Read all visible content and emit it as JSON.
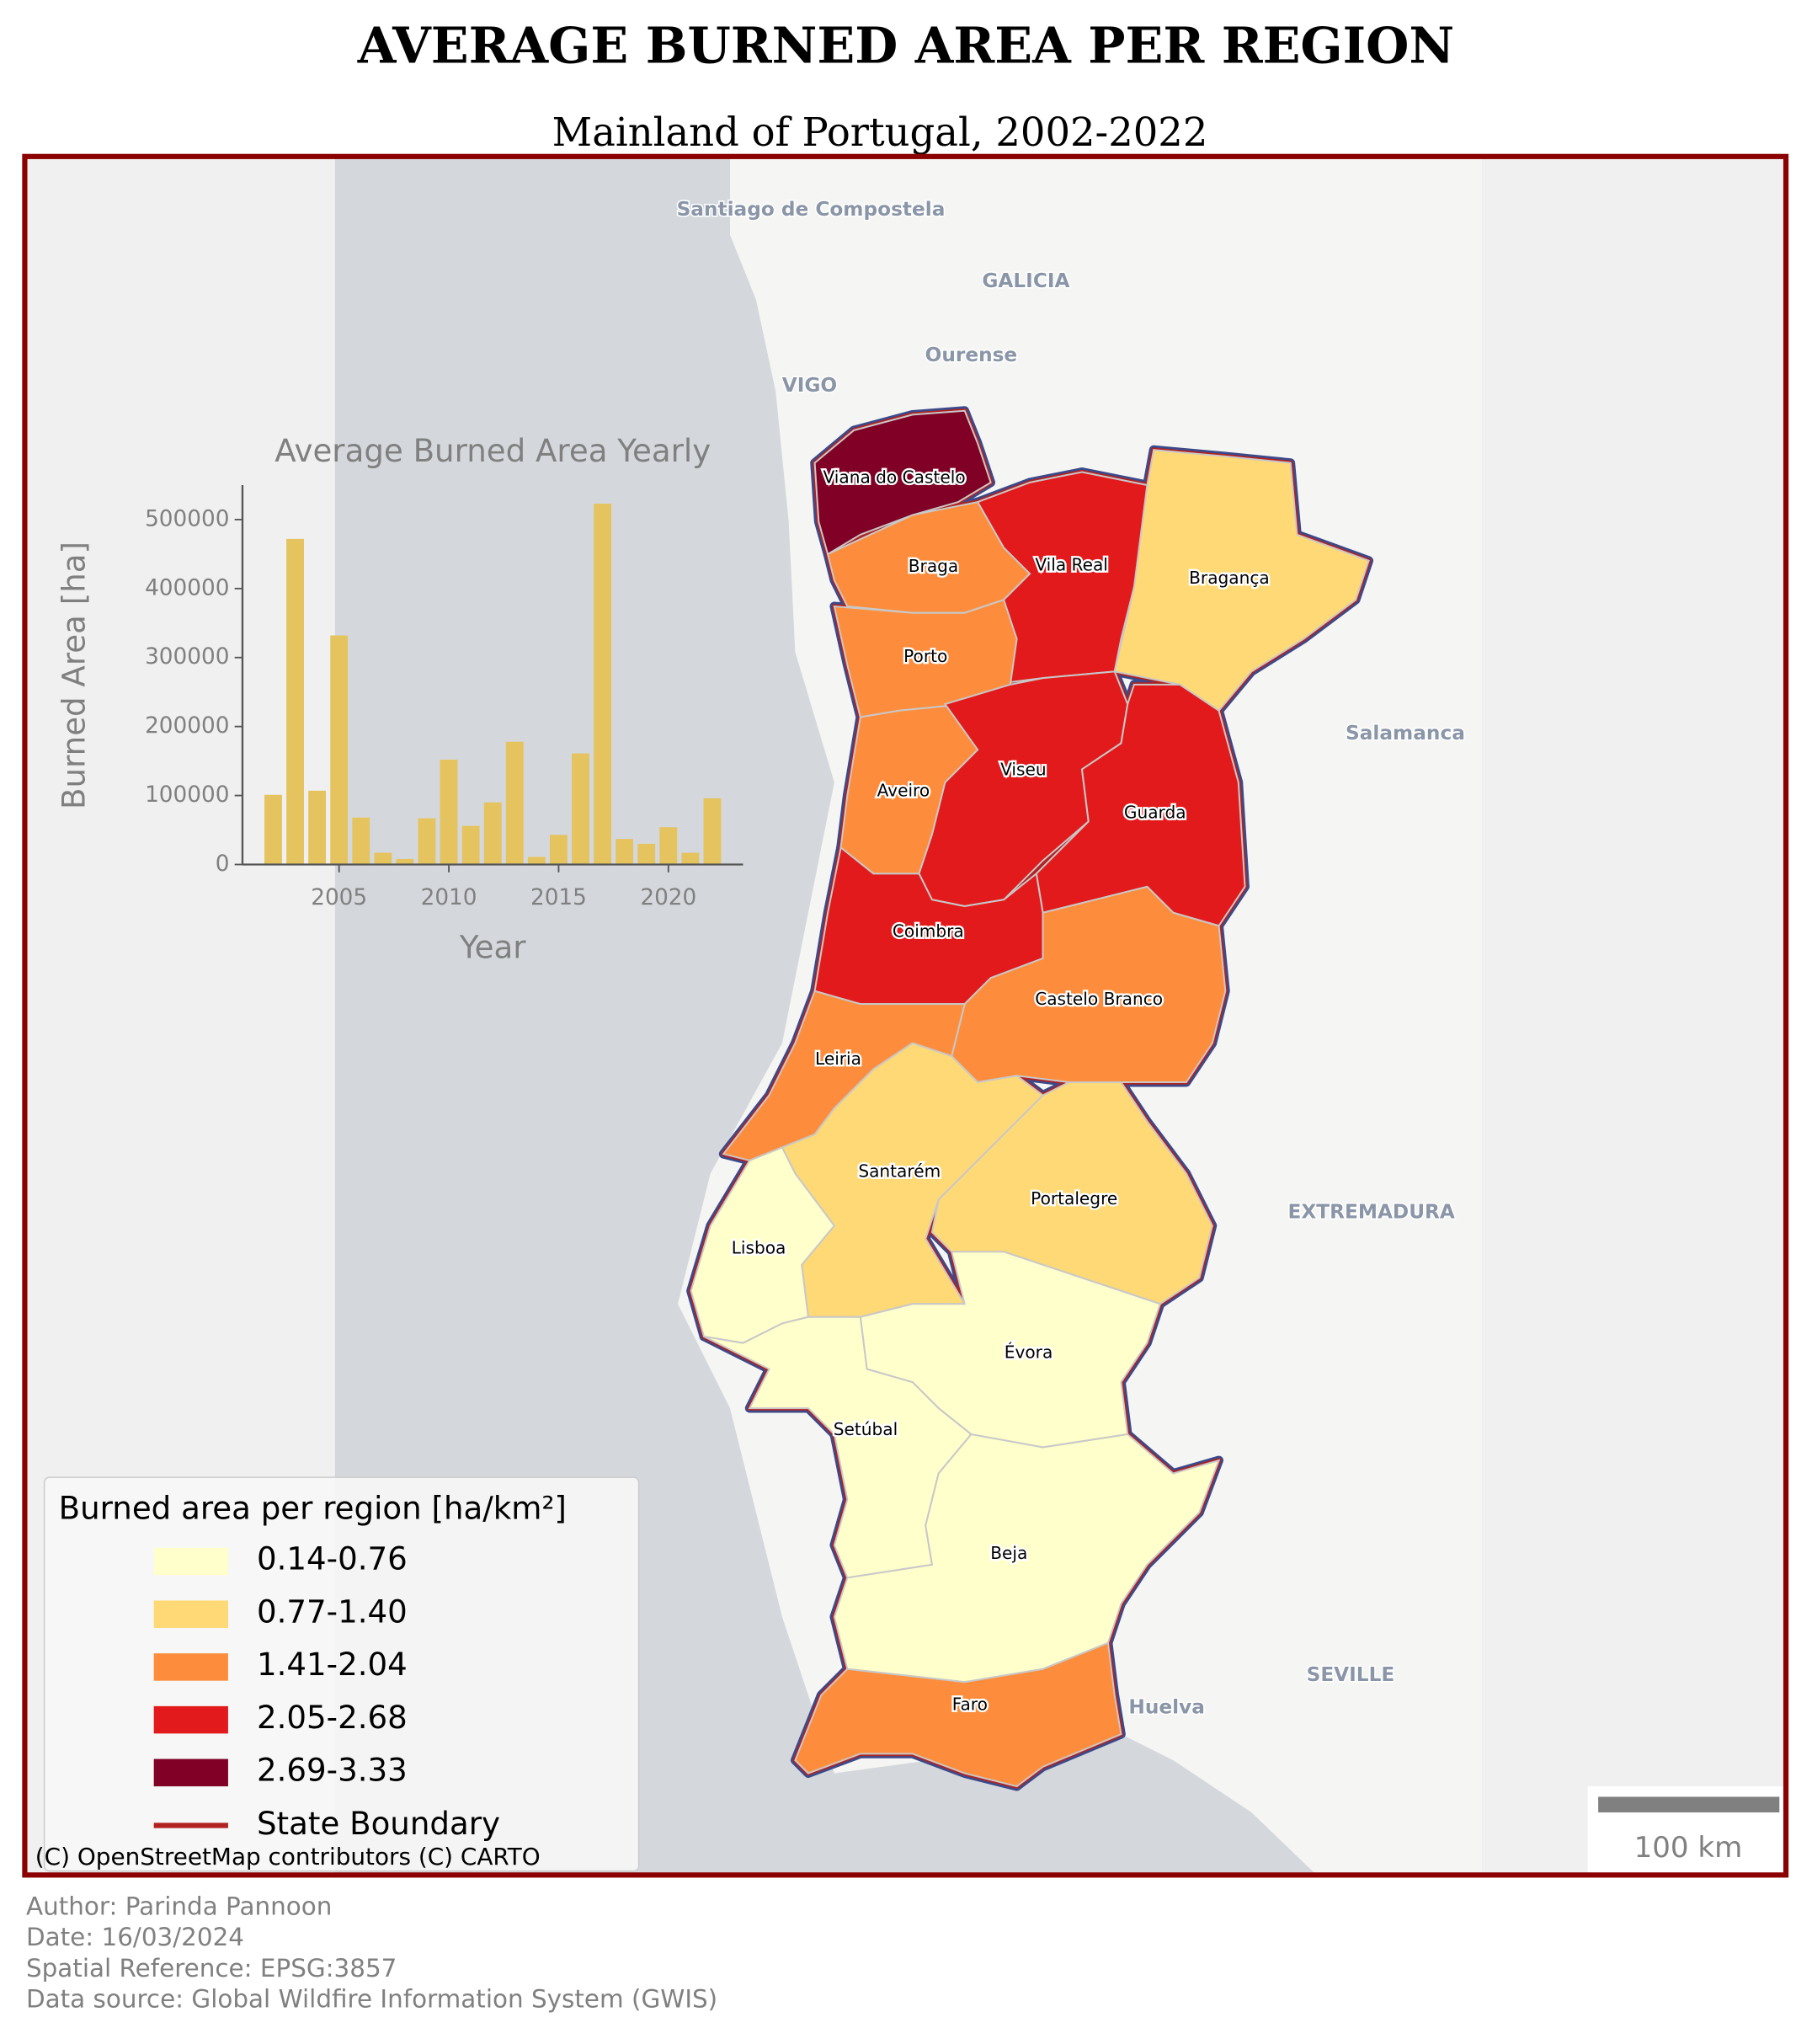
{
  "title": "AVERAGE BURNED AREA PER REGION",
  "subtitle": "Mainland of Portugal, 2002-2022",
  "regions": [
    {
      "name": "Viana do Castelo",
      "color": "#800026"
    },
    {
      "name": "Braga",
      "color": "#fd8d3c"
    },
    {
      "name": "Vila Real",
      "color": "#e31a1c"
    },
    {
      "name": "Bragança",
      "color": "#fed976"
    },
    {
      "name": "Porto",
      "color": "#fd8d3c"
    },
    {
      "name": "Aveiro",
      "color": "#fd8d3c"
    },
    {
      "name": "Viseu",
      "color": "#e31a1c"
    },
    {
      "name": "Guarda",
      "color": "#e31a1c"
    },
    {
      "name": "Coimbra",
      "color": "#e31a1c"
    },
    {
      "name": "Castelo Branco",
      "color": "#fd8d3c"
    },
    {
      "name": "Leiria",
      "color": "#fd8d3c"
    },
    {
      "name": "Santarém",
      "color": "#fed976"
    },
    {
      "name": "Portalegre",
      "color": "#fed976"
    },
    {
      "name": "Lisboa",
      "color": "#ffffcc"
    },
    {
      "name": "Évora",
      "color": "#ffffcc"
    },
    {
      "name": "Setúbal",
      "color": "#ffffcc"
    },
    {
      "name": "Beja",
      "color": "#ffffcc"
    },
    {
      "name": "Faro",
      "color": "#fd8d3c"
    }
  ],
  "basemap_labels": [
    "Santiago de Compostela",
    "GALICIA",
    "Ourense",
    "VIGO",
    "Salamanca",
    "EXTREMADURA",
    "SEVILLE",
    "Huelva"
  ],
  "legend": {
    "title": "Burned area per region [ha/km²]",
    "items": [
      {
        "label": "0.14-0.76",
        "color": "#ffffcc"
      },
      {
        "label": "0.77-1.40",
        "color": "#fed976"
      },
      {
        "label": "1.41-2.04",
        "color": "#fd8d3c"
      },
      {
        "label": "2.05-2.68",
        "color": "#e31a1c"
      },
      {
        "label": "2.69-3.33",
        "color": "#800026"
      }
    ],
    "boundary": {
      "label": "State Boundary",
      "color": "#b22222"
    }
  },
  "attribution": "(C) OpenStreetMap contributors (C) CARTO",
  "scale_bar": "100 km",
  "footer": [
    "Author: Parinda Pannoon",
    "Date: 16/03/2024",
    "Spatial Reference: EPSG:3857",
    "Data source: Global Wildfire Information System (GWIS)"
  ],
  "chart_data": {
    "type": "bar",
    "title": "Average Burned Area Yearly",
    "x_label": "Year",
    "y_label": "Burned Area [ha]",
    "x": [
      2002,
      2003,
      2004,
      2005,
      2006,
      2007,
      2008,
      2009,
      2010,
      2011,
      2012,
      2013,
      2014,
      2015,
      2016,
      2017,
      2018,
      2019,
      2020,
      2021,
      2022
    ],
    "values": [
      101000,
      472000,
      107000,
      332000,
      68000,
      17000,
      8000,
      67000,
      152000,
      56000,
      90000,
      178000,
      11000,
      43000,
      161000,
      523000,
      37000,
      30000,
      54000,
      17000,
      96000
    ],
    "color": "#e5c35e",
    "xlim": [
      2000.6,
      2023.4
    ],
    "xticks": [
      2005,
      2010,
      2015,
      2020
    ],
    "ylim": [
      0,
      550000
    ],
    "yticks": [
      0,
      100000,
      200000,
      300000,
      400000,
      500000
    ]
  }
}
